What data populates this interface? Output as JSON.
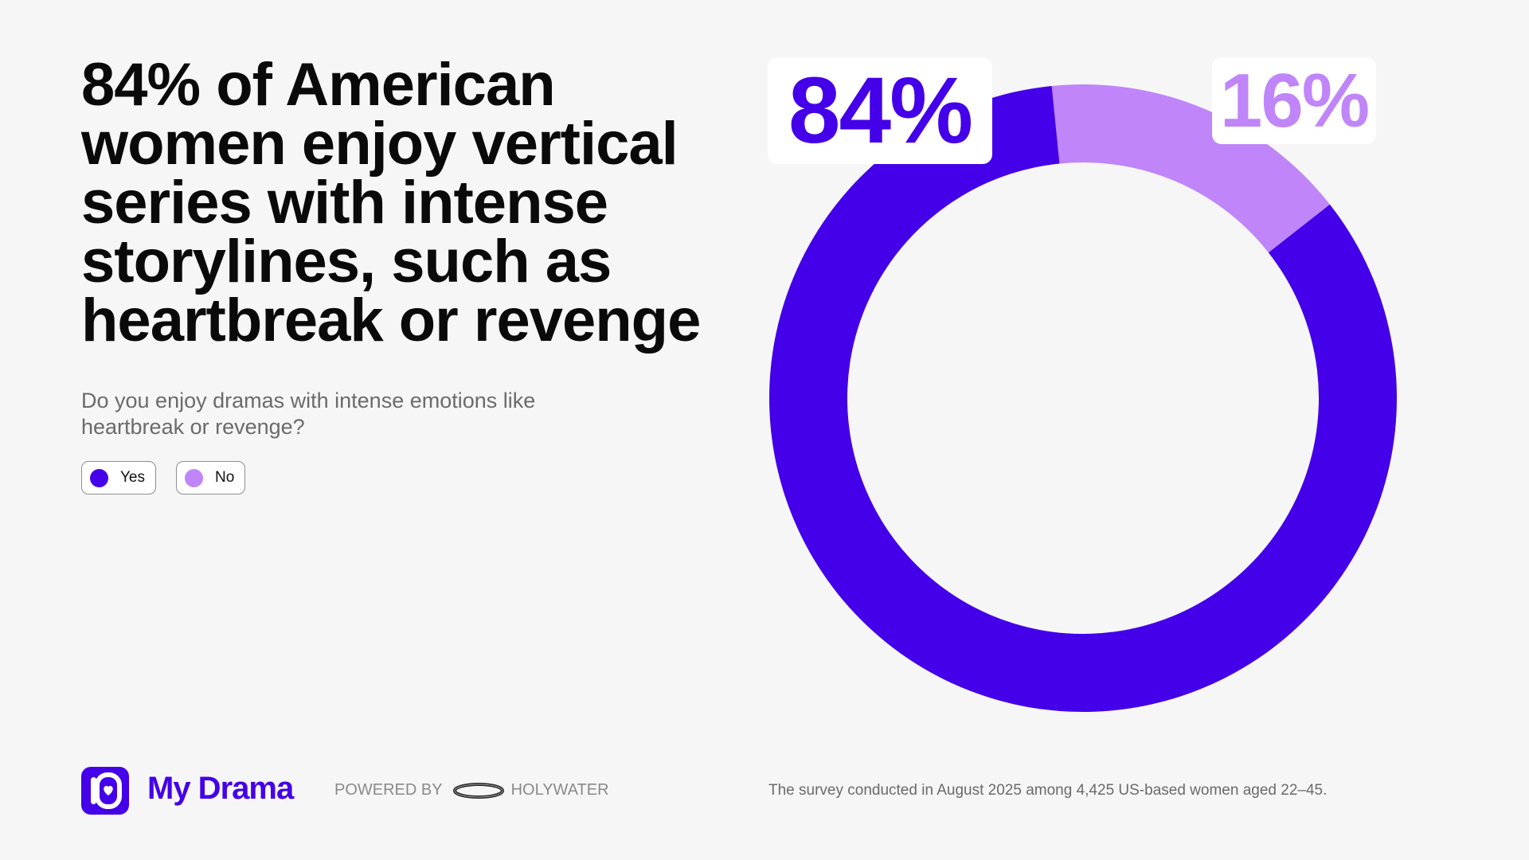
{
  "headline": "84% of American women enjoy vertical series with intense storylines, such as heartbreak or revenge",
  "question": "Do you enjoy dramas with intense emotions like heartbreak or revenge?",
  "legend": [
    {
      "label": "Yes",
      "color": "#4400e8"
    },
    {
      "label": "No",
      "color": "#c085f9"
    }
  ],
  "chart_data": {
    "type": "pie",
    "variant": "donut",
    "title": "Do you enjoy dramas with intense emotions like heartbreak or revenge?",
    "categories": [
      "Yes",
      "No"
    ],
    "values": [
      84,
      16
    ],
    "colors": [
      "#4400e8",
      "#c085f9"
    ],
    "data_labels": [
      "84%",
      "16%"
    ]
  },
  "footer": {
    "brand": "My Drama",
    "logo_icon": "my-drama-logo-icon",
    "powered_by": "POWERED BY",
    "partner": "HOLYWATER",
    "partner_icon": "holywater-ring-icon",
    "note": "The survey conducted in August 2025 among 4,425 US-based women aged 22–45."
  }
}
